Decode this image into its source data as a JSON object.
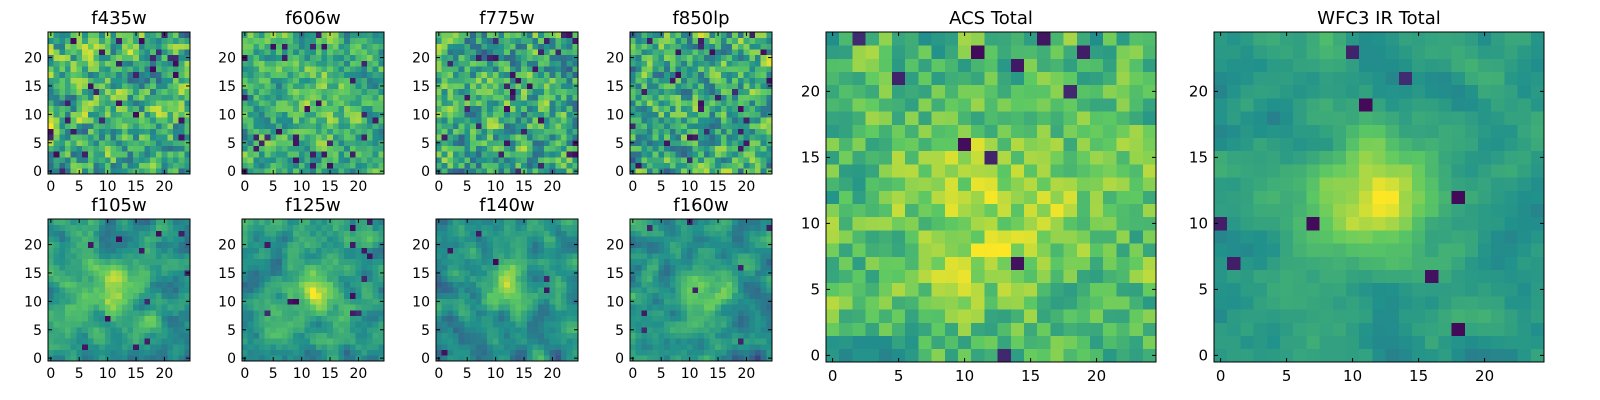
{
  "figure": {
    "colormap": "viridis",
    "colormap_stops": [
      "#440154",
      "#3b528b",
      "#21918c",
      "#5ec962",
      "#fde725"
    ]
  },
  "chart_data": [
    {
      "type": "heatmap",
      "title": "f435w",
      "grid_size": [
        25,
        25
      ],
      "xticks": [
        0,
        5,
        10,
        15,
        20
      ],
      "yticks": [
        0,
        5,
        10,
        15,
        20
      ],
      "xlim": [
        -0.5,
        24.5
      ],
      "ylim": [
        -0.5,
        24.5
      ],
      "seed": 11,
      "peak": {
        "center": [
          12,
          12
        ],
        "amplitude": 0.05,
        "sigma": 3
      },
      "noise": 0.55,
      "smooth": 0.1,
      "baseline": 0.62,
      "holes": 0.05
    },
    {
      "type": "heatmap",
      "title": "f606w",
      "grid_size": [
        25,
        25
      ],
      "xticks": [
        0,
        5,
        10,
        15,
        20
      ],
      "yticks": [
        0,
        5,
        10,
        15,
        20
      ],
      "xlim": [
        -0.5,
        24.5
      ],
      "ylim": [
        -0.5,
        24.5
      ],
      "seed": 23,
      "peak": {
        "center": [
          12,
          12
        ],
        "amplitude": 0.15,
        "sigma": 4
      },
      "noise": 0.5,
      "smooth": 0.15,
      "baseline": 0.62,
      "holes": 0.04
    },
    {
      "type": "heatmap",
      "title": "f775w",
      "grid_size": [
        25,
        25
      ],
      "xticks": [
        0,
        5,
        10,
        15,
        20
      ],
      "yticks": [
        0,
        5,
        10,
        15,
        20
      ],
      "xlim": [
        -0.5,
        24.5
      ],
      "ylim": [
        -0.5,
        24.5
      ],
      "seed": 37,
      "peak": {
        "center": [
          12,
          12
        ],
        "amplitude": 0.05,
        "sigma": 3
      },
      "noise": 0.55,
      "smooth": 0.1,
      "baseline": 0.6,
      "holes": 0.05
    },
    {
      "type": "heatmap",
      "title": "f850lp",
      "grid_size": [
        25,
        25
      ],
      "xticks": [
        0,
        5,
        10,
        15,
        20
      ],
      "yticks": [
        0,
        5,
        10,
        15,
        20
      ],
      "xlim": [
        -0.5,
        24.5
      ],
      "ylim": [
        -0.5,
        24.5
      ],
      "seed": 41,
      "peak": {
        "center": [
          12,
          12
        ],
        "amplitude": 0.05,
        "sigma": 3
      },
      "noise": 0.55,
      "smooth": 0.1,
      "baseline": 0.6,
      "holes": 0.05
    },
    {
      "type": "heatmap",
      "title": "f105w",
      "grid_size": [
        25,
        25
      ],
      "xticks": [
        0,
        5,
        10,
        15,
        20
      ],
      "yticks": [
        0,
        5,
        10,
        15,
        20
      ],
      "xlim": [
        -0.5,
        24.5
      ],
      "ylim": [
        -0.5,
        24.5
      ],
      "seed": 53,
      "peak": {
        "center": [
          11,
          12
        ],
        "amplitude": 0.3,
        "sigma": 3
      },
      "noise": 0.45,
      "smooth": 0.5,
      "baseline": 0.55,
      "holes": 0.02
    },
    {
      "type": "heatmap",
      "title": "f125w",
      "grid_size": [
        25,
        25
      ],
      "xticks": [
        0,
        5,
        10,
        15,
        20
      ],
      "yticks": [
        0,
        5,
        10,
        15,
        20
      ],
      "xlim": [
        -0.5,
        24.5
      ],
      "ylim": [
        -0.5,
        24.5
      ],
      "seed": 67,
      "peak": {
        "center": [
          12,
          12
        ],
        "amplitude": 0.3,
        "sigma": 3
      },
      "noise": 0.45,
      "smooth": 0.5,
      "baseline": 0.55,
      "holes": 0.02
    },
    {
      "type": "heatmap",
      "title": "f140w",
      "grid_size": [
        25,
        25
      ],
      "xticks": [
        0,
        5,
        10,
        15,
        20
      ],
      "yticks": [
        0,
        5,
        10,
        15,
        20
      ],
      "xlim": [
        -0.5,
        24.5
      ],
      "ylim": [
        -0.5,
        24.5
      ],
      "seed": 79,
      "peak": {
        "center": [
          12,
          13
        ],
        "amplitude": 0.35,
        "sigma": 3
      },
      "noise": 0.45,
      "smooth": 0.5,
      "baseline": 0.5,
      "holes": 0.02
    },
    {
      "type": "heatmap",
      "title": "f160w",
      "grid_size": [
        25,
        25
      ],
      "xticks": [
        0,
        5,
        10,
        15,
        20
      ],
      "yticks": [
        0,
        5,
        10,
        15,
        20
      ],
      "xlim": [
        -0.5,
        24.5
      ],
      "ylim": [
        -0.5,
        24.5
      ],
      "seed": 83,
      "peak": {
        "center": [
          13,
          11
        ],
        "amplitude": 0.4,
        "sigma": 3
      },
      "noise": 0.45,
      "smooth": 0.5,
      "baseline": 0.5,
      "holes": 0.02
    },
    {
      "type": "heatmap",
      "title": "ACS Total",
      "grid_size": [
        25,
        25
      ],
      "xticks": [
        0,
        5,
        10,
        15,
        20
      ],
      "yticks": [
        0,
        5,
        10,
        15,
        20
      ],
      "xlim": [
        -0.5,
        24.5
      ],
      "ylim": [
        -0.5,
        24.5
      ],
      "seed": 97,
      "peak": {
        "center": [
          12,
          11
        ],
        "amplitude": 0.18,
        "sigma": 5
      },
      "noise": 0.35,
      "smooth": 0.1,
      "baseline": 0.68,
      "holes": 0.025
    },
    {
      "type": "heatmap",
      "title": "WFC3 IR Total",
      "grid_size": [
        25,
        25
      ],
      "xticks": [
        0,
        5,
        10,
        15,
        20
      ],
      "yticks": [
        0,
        5,
        10,
        15,
        20
      ],
      "xlim": [
        -0.5,
        24.5
      ],
      "ylim": [
        -0.5,
        24.5
      ],
      "seed": 101,
      "peak": {
        "center": [
          12,
          12
        ],
        "amplitude": 0.45,
        "sigma": 3
      },
      "noise": 0.25,
      "smooth": 0.45,
      "baseline": 0.55,
      "holes": 0.012
    }
  ]
}
